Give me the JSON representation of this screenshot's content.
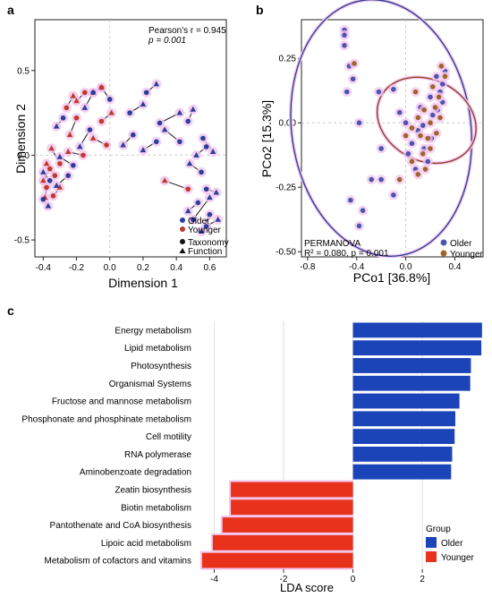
{
  "panels": {
    "a": {
      "label": "a"
    },
    "b": {
      "label": "b"
    },
    "c": {
      "label": "c"
    }
  },
  "colors": {
    "older": "#2a3f9c",
    "younger": "#c0392b",
    "older_b": "#4b55b0",
    "younger_b": "#a0642a",
    "ellipse_older": "#1f3f8f",
    "ellipse_younger": "#8b3a1a",
    "halo": "#f3c6ee",
    "bar_older": "#1b44b8",
    "bar_younger": "#e8321c"
  },
  "chart_data": [
    {
      "id": "a",
      "type": "scatter",
      "xlabel": "Dimension 1",
      "ylabel": "Dimension 2",
      "xlim": [
        -0.45,
        0.7
      ],
      "ylim": [
        -0.6,
        0.8
      ],
      "xticks": [
        -0.4,
        -0.2,
        0.0,
        0.2,
        0.4,
        0.6
      ],
      "xticklabels": [
        "-0.4",
        "-0.2",
        "0.0",
        "0.2",
        "0.4",
        "0.6"
      ],
      "yticks": [
        -0.5,
        0.0,
        0.5
      ],
      "yticklabels": [
        "-0.5",
        "0.0",
        "0.5"
      ],
      "annotation": {
        "line1": "Pearson's r = 0.945",
        "line2": "p = 0.001"
      },
      "legend": {
        "groups": [
          "Older",
          "Younger"
        ],
        "shapes": [
          "Taxonomy",
          "Function"
        ]
      },
      "pairs": [
        {
          "g": "O",
          "t": [
            0.22,
            0.37
          ],
          "f": [
            0.28,
            0.42
          ]
        },
        {
          "g": "O",
          "t": [
            0.12,
            0.25
          ],
          "f": [
            0.2,
            0.3
          ]
        },
        {
          "g": "O",
          "t": [
            0.0,
            0.33
          ],
          "f": [
            -0.05,
            0.4
          ]
        },
        {
          "g": "Y",
          "t": [
            -0.05,
            0.4
          ],
          "f": [
            -0.1,
            0.37
          ]
        },
        {
          "g": "O",
          "t": [
            -0.1,
            0.37
          ],
          "f": [
            -0.15,
            0.28
          ]
        },
        {
          "g": "Y",
          "t": [
            -0.15,
            0.37
          ],
          "f": [
            -0.2,
            0.32
          ]
        },
        {
          "g": "Y",
          "t": [
            -0.26,
            0.28
          ],
          "f": [
            -0.22,
            0.35
          ]
        },
        {
          "g": "O",
          "t": [
            -0.28,
            0.22
          ],
          "f": [
            -0.32,
            0.17
          ]
        },
        {
          "g": "Y",
          "t": [
            -0.2,
            0.22
          ],
          "f": [
            -0.24,
            0.12
          ]
        },
        {
          "g": "O",
          "t": [
            -0.12,
            0.15
          ],
          "f": [
            -0.18,
            0.05
          ]
        },
        {
          "g": "Y",
          "t": [
            -0.16,
            0.0
          ],
          "f": [
            -0.25,
            0.02
          ]
        },
        {
          "g": "O",
          "t": [
            -0.22,
            -0.06
          ],
          "f": [
            -0.3,
            -0.01
          ]
        },
        {
          "g": "Y",
          "t": [
            -0.3,
            -0.05
          ],
          "f": [
            -0.35,
            0.04
          ]
        },
        {
          "g": "Y",
          "t": [
            -0.33,
            -0.12
          ],
          "f": [
            -0.38,
            -0.05
          ]
        },
        {
          "g": "O",
          "t": [
            -0.36,
            -0.15
          ],
          "f": [
            -0.4,
            -0.1
          ]
        },
        {
          "g": "Y",
          "t": [
            -0.38,
            -0.19
          ],
          "f": [
            -0.39,
            -0.25
          ]
        },
        {
          "g": "O",
          "t": [
            -0.4,
            -0.26
          ],
          "f": [
            -0.37,
            -0.3
          ]
        },
        {
          "g": "Y",
          "t": [
            -0.34,
            -0.24
          ],
          "f": [
            -0.3,
            -0.19
          ]
        },
        {
          "g": "Y",
          "t": [
            -0.36,
            -0.08
          ],
          "f": [
            -0.4,
            -0.15
          ]
        },
        {
          "g": "O",
          "t": [
            0.3,
            0.19
          ],
          "f": [
            0.42,
            0.25
          ]
        },
        {
          "g": "O",
          "t": [
            0.47,
            0.2
          ],
          "f": [
            0.5,
            0.27
          ]
        },
        {
          "g": "O",
          "t": [
            0.58,
            0.05
          ],
          "f": [
            0.52,
            0.0
          ]
        },
        {
          "g": "O",
          "t": [
            0.55,
            -0.1
          ],
          "f": [
            0.48,
            -0.05
          ]
        },
        {
          "g": "O",
          "t": [
            0.58,
            -0.2
          ],
          "f": [
            0.64,
            -0.22
          ]
        },
        {
          "g": "O",
          "t": [
            0.53,
            -0.28
          ],
          "f": [
            0.47,
            -0.33
          ]
        },
        {
          "g": "O",
          "t": [
            0.6,
            -0.35
          ],
          "f": [
            0.55,
            -0.45
          ]
        },
        {
          "g": "O",
          "t": [
            0.58,
            -0.42
          ],
          "f": [
            0.65,
            -0.38
          ]
        },
        {
          "g": "O",
          "t": [
            0.5,
            -0.38
          ],
          "f": [
            0.6,
            -0.25
          ]
        },
        {
          "g": "Y",
          "t": [
            0.47,
            -0.2
          ],
          "f": [
            0.33,
            -0.15
          ]
        },
        {
          "g": "O",
          "t": [
            0.56,
            0.1
          ],
          "f": [
            0.62,
            0.02
          ]
        },
        {
          "g": "O",
          "t": [
            0.42,
            0.08
          ],
          "f": [
            0.33,
            0.15
          ]
        },
        {
          "g": "O",
          "t": [
            0.14,
            0.12
          ],
          "f": [
            0.08,
            0.06
          ]
        },
        {
          "g": "Y",
          "t": [
            -0.02,
            0.06
          ],
          "f": [
            -0.1,
            0.1
          ]
        },
        {
          "g": "O",
          "t": [
            -0.25,
            -0.12
          ],
          "f": [
            -0.32,
            -0.18
          ]
        },
        {
          "g": "Y",
          "t": [
            -0.05,
            0.2
          ],
          "f": [
            0.01,
            0.25
          ]
        },
        {
          "g": "O",
          "t": [
            0.28,
            0.08
          ],
          "f": [
            0.2,
            0.03
          ]
        }
      ]
    },
    {
      "id": "b",
      "type": "scatter",
      "xlabel": "PCo1 [36.8%]",
      "ylabel": "PCo2 [15.3%]",
      "xlim": [
        -0.85,
        0.63
      ],
      "ylim": [
        -0.52,
        0.4
      ],
      "xticks": [
        -0.8,
        -0.4,
        0.0,
        0.4
      ],
      "xticklabels": [
        "-0.8",
        "-0.4",
        "0.0",
        "0.4"
      ],
      "yticks": [
        0.25,
        0.0,
        -0.25,
        -0.5
      ],
      "yticklabels": [
        "0.25",
        "0.00",
        "-0.25",
        "-0.50"
      ],
      "annotation": {
        "line1": "PERMANOVA",
        "line2": "R² = 0.080, p = 0.001"
      },
      "legend": {
        "groups": [
          "Older",
          "Younger"
        ]
      },
      "ellipses": [
        {
          "group": "Older",
          "cx": -0.2,
          "cy": -0.02,
          "rx": 0.73,
          "ry": 0.5,
          "angle": 8
        },
        {
          "group": "Younger",
          "cx": 0.17,
          "cy": 0.01,
          "rx": 0.33,
          "ry": 0.2,
          "angle": 63
        }
      ],
      "older": [
        [
          -0.5,
          0.36
        ],
        [
          -0.5,
          0.34
        ],
        [
          -0.5,
          0.3
        ],
        [
          -0.46,
          0.22
        ],
        [
          -0.43,
          0.17
        ],
        [
          -0.22,
          0.12
        ],
        [
          -0.1,
          0.13
        ],
        [
          -0.48,
          0.12
        ],
        [
          -0.38,
          0.0
        ],
        [
          -0.05,
          0.04
        ],
        [
          -0.2,
          -0.1
        ],
        [
          -0.45,
          -0.3
        ],
        [
          -0.2,
          -0.22
        ],
        [
          -0.28,
          -0.22
        ],
        [
          -0.1,
          -0.28
        ],
        [
          -0.35,
          -0.34
        ],
        [
          -0.38,
          -0.4
        ],
        [
          0.0,
          0.0
        ],
        [
          0.05,
          -0.08
        ],
        [
          0.15,
          -0.1
        ],
        [
          0.1,
          -0.03
        ],
        [
          0.22,
          0.03
        ],
        [
          0.25,
          0.18
        ],
        [
          0.28,
          0.12
        ],
        [
          0.3,
          0.08
        ],
        [
          0.2,
          0.1
        ],
        [
          0.12,
          0.06
        ],
        [
          0.02,
          -0.12
        ],
        [
          0.18,
          -0.15
        ],
        [
          0.26,
          0.05
        ],
        [
          0.08,
          -0.18
        ],
        [
          0.21,
          -0.06
        ],
        [
          0.14,
          -0.01
        ],
        [
          0.3,
          0.15
        ],
        [
          0.32,
          0.2
        ]
      ],
      "younger": [
        [
          0.29,
          0.22
        ],
        [
          0.32,
          0.18
        ],
        [
          0.27,
          0.1
        ],
        [
          0.24,
          0.06
        ],
        [
          0.22,
          0.14
        ],
        [
          0.15,
          0.05
        ],
        [
          0.1,
          0.02
        ],
        [
          0.05,
          -0.02
        ],
        [
          0.0,
          -0.05
        ],
        [
          0.12,
          -0.05
        ],
        [
          0.18,
          -0.06
        ],
        [
          0.25,
          -0.04
        ],
        [
          -0.05,
          -0.22
        ],
        [
          0.1,
          -0.2
        ],
        [
          0.05,
          -0.15
        ],
        [
          0.16,
          -0.18
        ],
        [
          0.2,
          -0.1
        ],
        [
          0.28,
          0.02
        ],
        [
          -0.42,
          0.23
        ],
        [
          0.08,
          0.12
        ],
        [
          0.2,
          0.0
        ],
        [
          0.14,
          -0.12
        ]
      ]
    },
    {
      "id": "c",
      "type": "bar",
      "xlabel": "LDA score",
      "xlim": [
        -4.45,
        3.75
      ],
      "xticks": [
        -4,
        -2,
        0,
        2
      ],
      "xticklabels": [
        "-4",
        "-2",
        "0",
        "2"
      ],
      "categories": [
        "Energy metabolism",
        "Lipid metabolism",
        "Photosynthesis",
        "Organismal Systems",
        "Fructose and mannose metabolism",
        "Phosphonate and phosphinate metabolism",
        "Cell motility",
        "RNA polymerase",
        "Aminobenzoate degradation",
        "Zeatin biosynthesis",
        "Biotin metabolism",
        "Pantothenate and CoA biosynthesis",
        "Lipoic acid metabolism",
        "Metabolism of cofactors and vitamins"
      ],
      "values": [
        3.72,
        3.7,
        3.4,
        3.38,
        3.07,
        2.95,
        2.93,
        2.86,
        2.83,
        -3.52,
        -3.52,
        -3.76,
        -4.04,
        -4.35
      ],
      "groups": [
        "Older",
        "Older",
        "Older",
        "Older",
        "Older",
        "Older",
        "Older",
        "Older",
        "Older",
        "Younger",
        "Younger",
        "Younger",
        "Younger",
        "Younger"
      ],
      "legend": {
        "title": "Group",
        "entries": [
          "Older",
          "Younger"
        ]
      }
    }
  ]
}
